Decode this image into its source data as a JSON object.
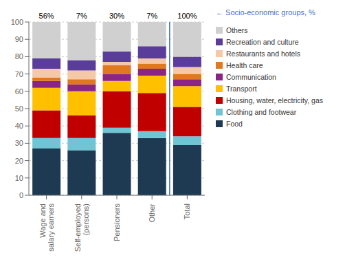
{
  "chart_data": {
    "type": "bar",
    "stacked": true,
    "categories": [
      "Wage and\nsalary earners",
      "Self-employed\n(persons)",
      "Pensioners",
      "Other",
      "Total"
    ],
    "series": [
      {
        "name": "Food",
        "color": "#1e3a52",
        "values": [
          27,
          26,
          36,
          33,
          29
        ]
      },
      {
        "name": "Clothing and footwear",
        "color": "#70c4d4",
        "values": [
          6,
          7,
          3,
          4,
          5
        ]
      },
      {
        "name": "Housing, water, electricity, gas",
        "color": "#c00000",
        "values": [
          16,
          13,
          21,
          22,
          17
        ]
      },
      {
        "name": "Transport",
        "color": "#ffc000",
        "values": [
          13,
          14,
          6,
          10,
          12
        ]
      },
      {
        "name": "Communication",
        "color": "#8b2585",
        "values": [
          4,
          4,
          4,
          4,
          4
        ]
      },
      {
        "name": "Health care",
        "color": "#e07820",
        "values": [
          2,
          3,
          5,
          3,
          3
        ]
      },
      {
        "name": "Restaurants and hotels",
        "color": "#f5c8a8",
        "values": [
          5,
          5,
          2,
          3,
          4
        ]
      },
      {
        "name": "Recreation and culture",
        "color": "#5a3d9a",
        "values": [
          6,
          6,
          6,
          7,
          6
        ]
      },
      {
        "name": "Others",
        "color": "#d0d0d0",
        "values": [
          21,
          22,
          17,
          14,
          20
        ]
      }
    ],
    "ylim": [
      0,
      100
    ],
    "yticks": [
      0,
      10,
      20,
      30,
      40,
      50,
      60,
      70,
      80,
      90,
      100
    ],
    "grid": true,
    "legend": "right",
    "annotations": [
      {
        "text": "←  Socio-economic groups, %",
        "color": "#4472c4"
      }
    ],
    "top_labels": [
      "56%",
      "7%",
      "30%",
      "7%",
      "100%"
    ],
    "divider": {
      "between": [
        "Other",
        "Total"
      ],
      "color": "#4472c4"
    }
  }
}
